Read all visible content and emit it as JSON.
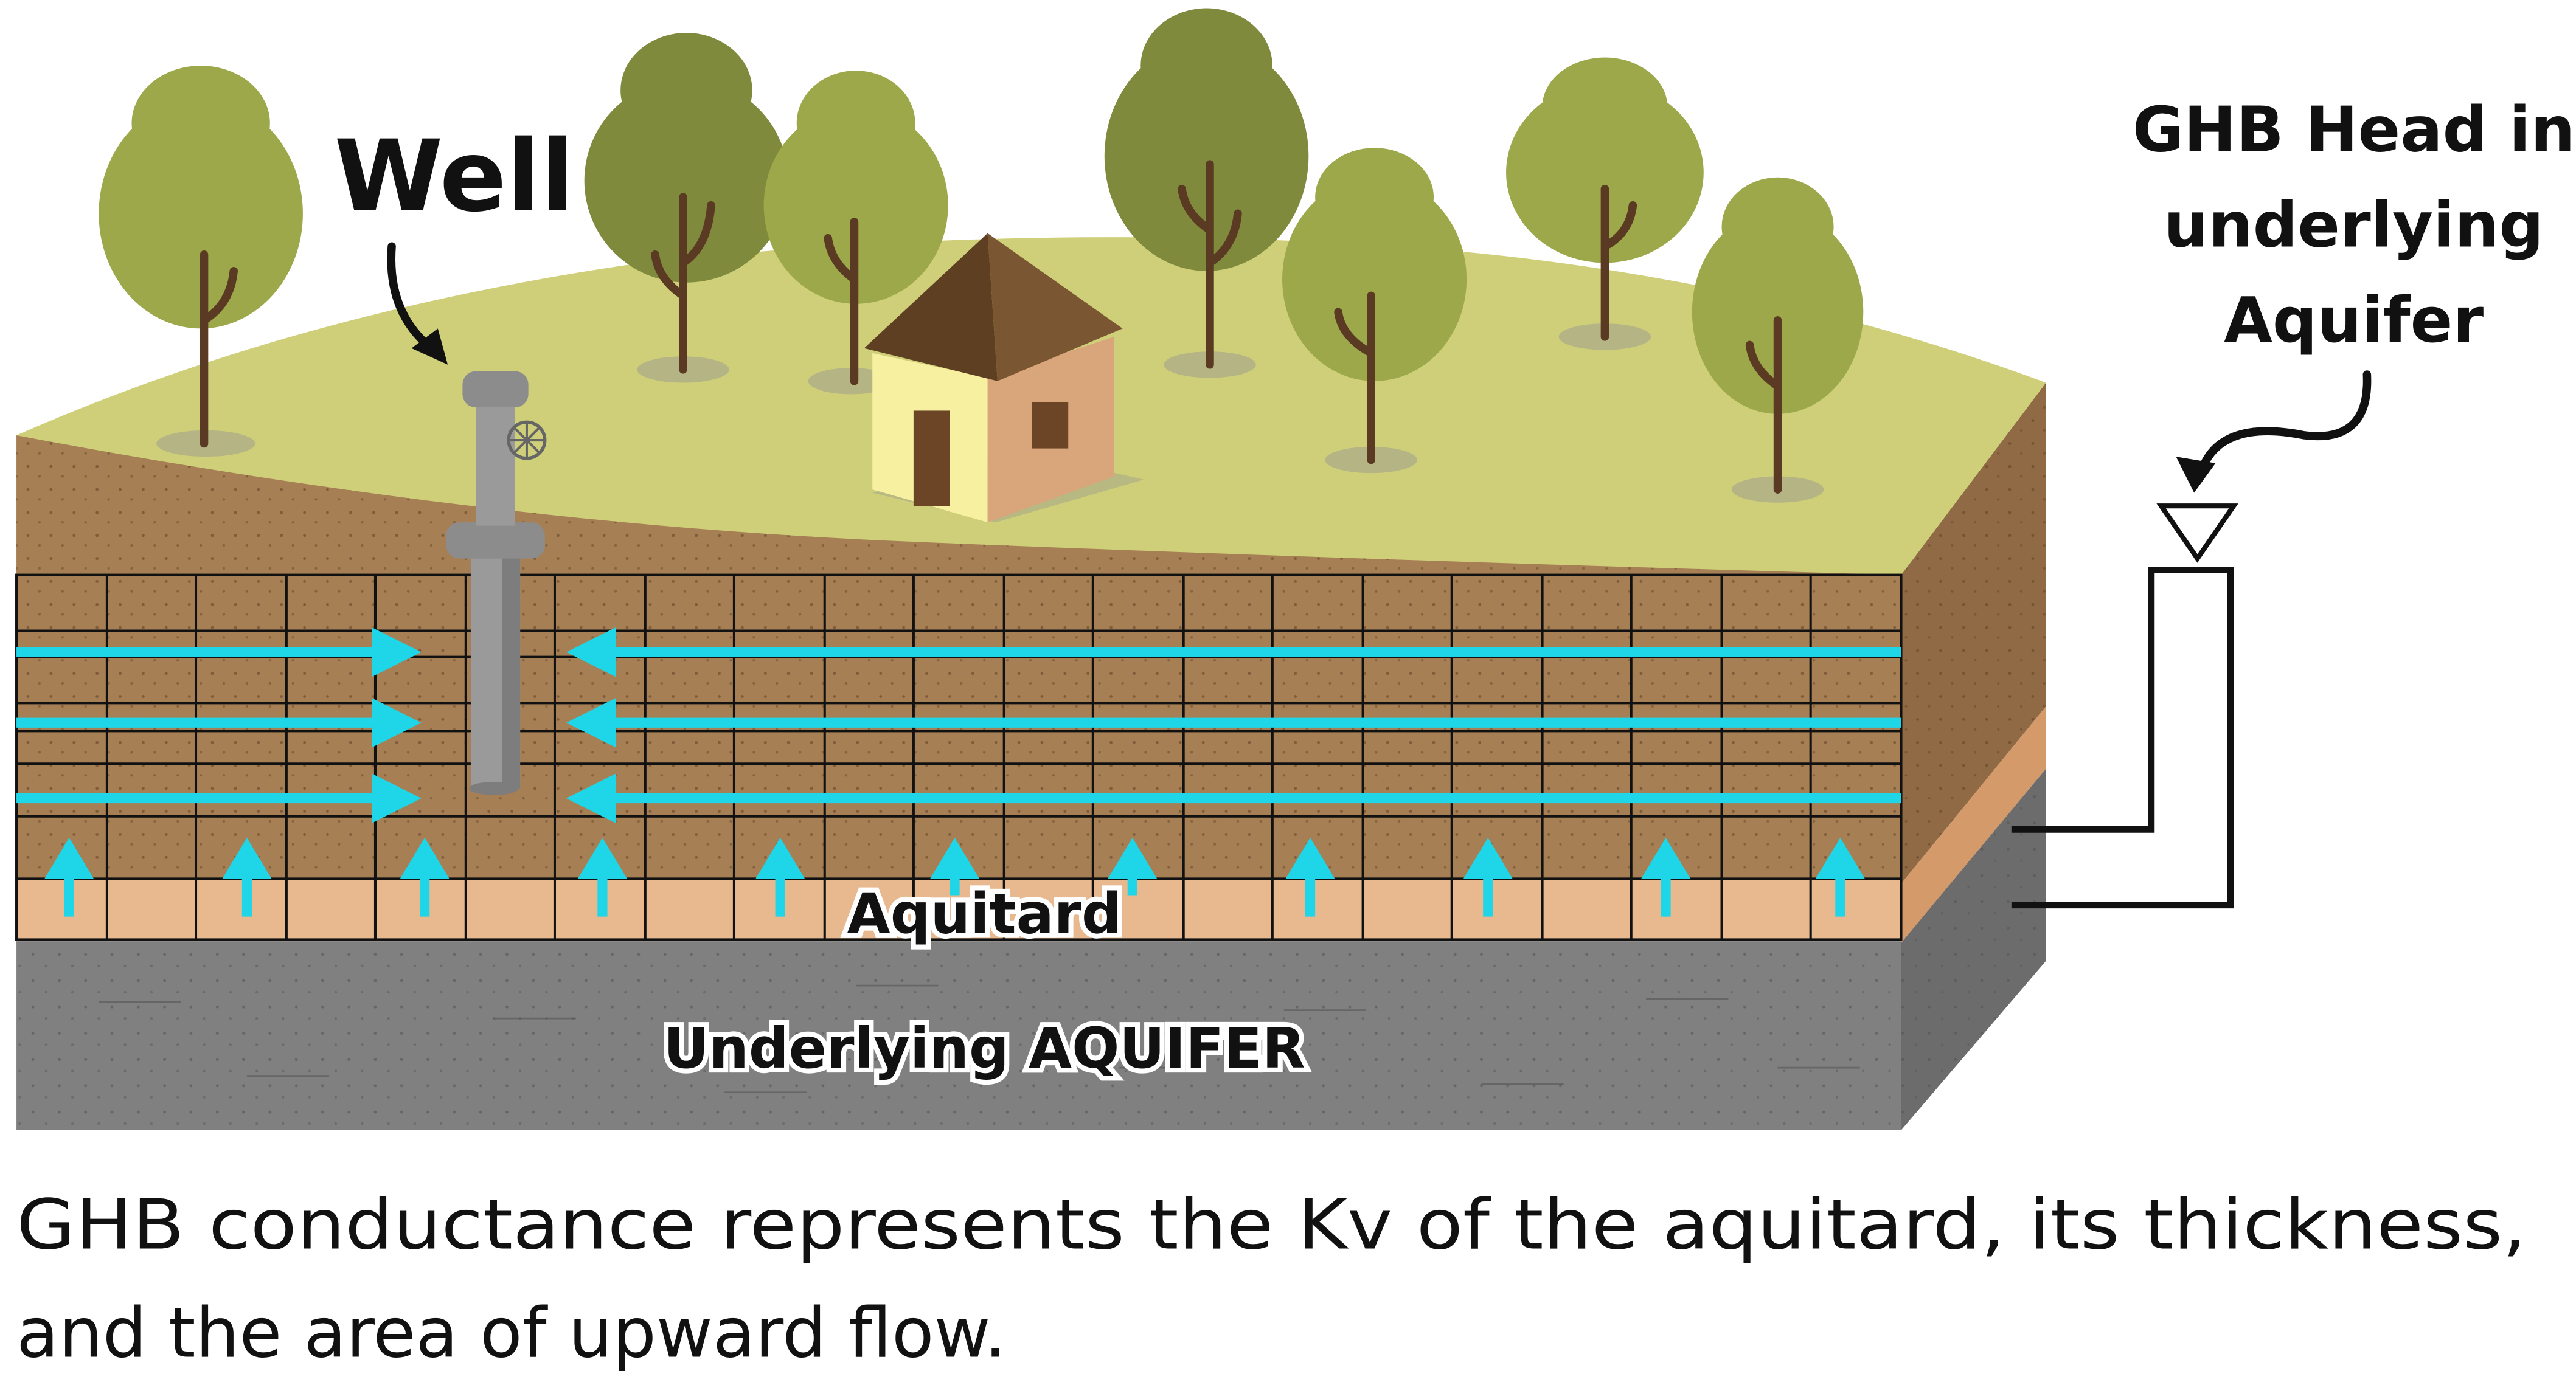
{
  "labels": {
    "well": "Well",
    "ghb_head_line1": "GHB Head in",
    "ghb_head_line2": "underlying",
    "ghb_head_line3": "Aquifer",
    "aquitard": "Aquitard",
    "underlying_aquifer": "Underlying AQUIFER"
  },
  "caption": {
    "line1": "GHB conductance represents the Kv of the aquitard, its thickness,",
    "line2": "and the area of upward flow."
  },
  "colors": {
    "grass": "#cfcf7a",
    "soil": "#a67f55",
    "soil_side": "#8f6a45",
    "aquitard": "#e8b98f",
    "aquitard_side": "#d49a6a",
    "aquifer": "#808080",
    "aquifer_side": "#6c6c6c",
    "arrow": "#1fd6e8",
    "tree_crown": "#9ca84a",
    "tree_crown_dark": "#7f8a3c",
    "trunk": "#5a3a22",
    "house_wall": "#f6f0a0",
    "house_side": "#d9a57a",
    "roof": "#7b5632",
    "well_pipe": "#9a9a9a"
  },
  "icons": {
    "well": "well-pump-icon",
    "house": "house-icon",
    "tree": "tree-icon",
    "head_marker": "water-table-triangle-icon"
  }
}
